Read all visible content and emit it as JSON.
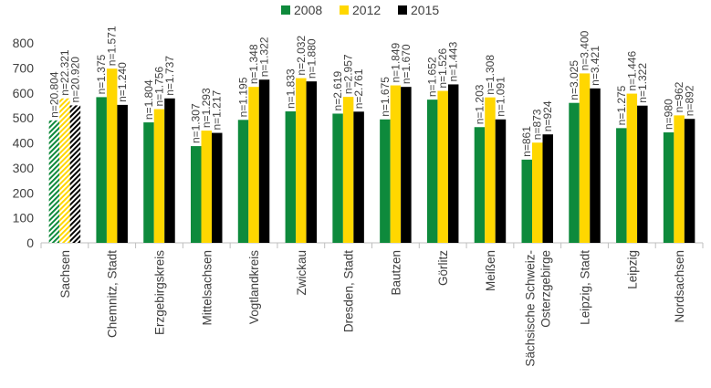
{
  "chart_data": {
    "type": "bar",
    "title": "",
    "xlabel": "",
    "ylabel": "",
    "ylim": [
      0,
      800
    ],
    "yticks": [
      0,
      100,
      200,
      300,
      400,
      500,
      600,
      700,
      800
    ],
    "grid": false,
    "legend_position": "top-center",
    "categories": [
      "Sachsen",
      "Chemnitz, Stadt",
      "Erzgebirgskreis",
      "Mittelsachsen",
      "Vogtlandkreis",
      "Zwickau",
      "Dresden, Stadt",
      "Bautzen",
      "Görlitz",
      "Meißen",
      "Sächsische Schweiz-Osterzgebirge",
      "Leipzig, Stadt",
      "Leipzig",
      "Nordsachsen"
    ],
    "category_lines": [
      [
        "Sachsen"
      ],
      [
        "Chemnitz, Stadt"
      ],
      [
        "Erzgebirgskreis"
      ],
      [
        "Mittelsachsen"
      ],
      [
        "Vogtlandkreis"
      ],
      [
        "Zwickau"
      ],
      [
        "Dresden, Stadt"
      ],
      [
        "Bautzen"
      ],
      [
        "Görlitz"
      ],
      [
        "Meißen"
      ],
      [
        "Sächsische Schweiz-",
        "Osterzgebirge"
      ],
      [
        "Leipzig, Stadt"
      ],
      [
        "Leipzig"
      ],
      [
        "Nordsachsen"
      ]
    ],
    "series": [
      {
        "name": "2008",
        "color": "#0e8a3c",
        "values": [
          490,
          583,
          482,
          387,
          492,
          526,
          517,
          494,
          573,
          463,
          333,
          560,
          459,
          442
        ],
        "labels": [
          "n=20.804",
          "n=1.375",
          "n=1.804",
          "n=1.307",
          "n=1.195",
          "n=1.833",
          "n=2.619",
          "n=1.675",
          "n=1.652",
          "n=1.203",
          "n=861",
          "n=3.025",
          "n=1.275",
          "n=980"
        ]
      },
      {
        "name": "2012",
        "color": "#ffd700",
        "values": [
          578,
          697,
          535,
          449,
          624,
          659,
          584,
          630,
          608,
          582,
          401,
          678,
          597,
          510
        ],
        "labels": [
          "n=22.321",
          "n=1.571",
          "n=1.756",
          "n=1.293",
          "n=1.348",
          "n=2.032",
          "n=2.957",
          "n=1.849",
          "n=1.526",
          "n=1.308",
          "n=873",
          "n=3.400",
          "n=1.446",
          "n=962"
        ]
      },
      {
        "name": "2015",
        "color": "#000000",
        "values": [
          550,
          552,
          578,
          440,
          653,
          646,
          525,
          624,
          634,
          494,
          434,
          618,
          549,
          496
        ],
        "labels": [
          "n=20.920",
          "n=1.240",
          "n=1.737",
          "n=1.217",
          "n=1.322",
          "n=1.880",
          "n=2.761",
          "n=1.670",
          "n=1.443",
          "n=1.091",
          "n=924",
          "n=3.421",
          "n=1.322",
          "n=892"
        ]
      }
    ],
    "hatched_category": "Sachsen"
  }
}
